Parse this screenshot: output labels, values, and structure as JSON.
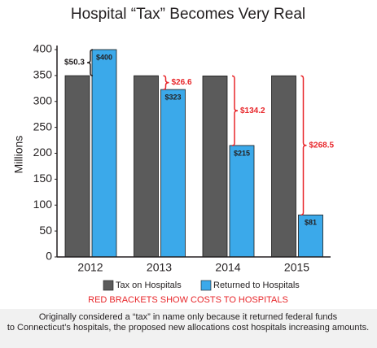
{
  "chart_data": {
    "type": "bar",
    "title": "Hospital “Tax” Becomes Very Real",
    "y_label": "Millions",
    "categories": [
      "2012",
      "2013",
      "2014",
      "2015"
    ],
    "series": [
      {
        "name": "Tax on Hospitals",
        "color": "#5b5b5b",
        "values": [
          349.7,
          349.6,
          349.2,
          349.5
        ]
      },
      {
        "name": "Returned to Hospitals",
        "color": "#3ba9ea",
        "values": [
          400,
          323,
          215,
          81
        ],
        "value_labels": [
          "$400",
          "$323",
          "$215",
          "$81"
        ]
      }
    ],
    "brackets": [
      {
        "label": "$50.3",
        "color": "#231f20"
      },
      {
        "label": "$26.6",
        "color": "#e8262a"
      },
      {
        "label": "$134.2",
        "color": "#e8262a"
      },
      {
        "label": "$268.5",
        "color": "#e8262a"
      }
    ],
    "ylim": [
      0,
      400
    ],
    "yticks": [
      0,
      50,
      100,
      150,
      200,
      250,
      300,
      350,
      400
    ],
    "note": "RED BRACKETS SHOW COSTS TO HOSPITALS",
    "note_color": "#e8262a",
    "caption": [
      "Originally considered a “tax” in name only because it returned federal funds",
      "to Connecticut’s hospitals, the proposed new allocations cost hospitals increasing amounts."
    ]
  }
}
